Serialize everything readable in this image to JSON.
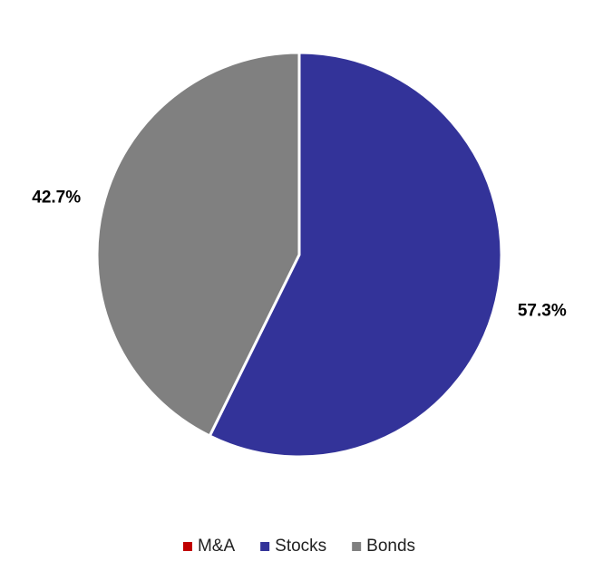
{
  "chart_data": {
    "type": "pie",
    "categories": [
      "M&A",
      "Stocks",
      "Bonds"
    ],
    "values": [
      0,
      57.3,
      42.7
    ],
    "value_labels": [
      null,
      "57.3%",
      "42.7%"
    ],
    "colors": [
      "#c00000",
      "#333399",
      "#808080"
    ],
    "legend": "bottom"
  }
}
